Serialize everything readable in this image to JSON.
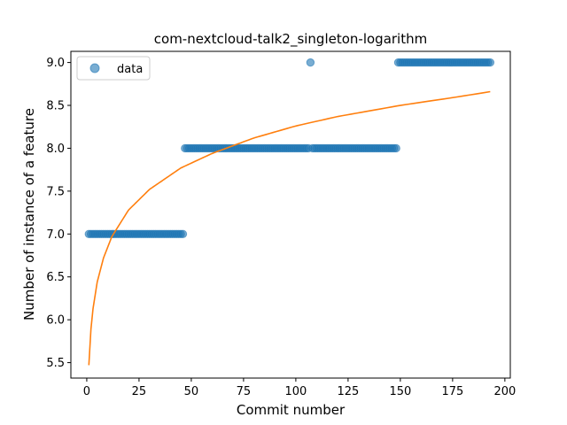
{
  "chart_data": {
    "type": "scatter",
    "title": "com-nextcloud-talk2_singleton-logarithm",
    "xlabel": "Commit number",
    "ylabel": "Number of instance of a feature",
    "xlim": [
      -7.6,
      202.6
    ],
    "ylim": [
      5.32,
      9.13
    ],
    "xticks": [
      0,
      25,
      50,
      75,
      100,
      125,
      150,
      175,
      200
    ],
    "yticks": [
      5.5,
      6.0,
      6.5,
      7.0,
      7.5,
      8.0,
      8.5,
      9.0
    ],
    "ytick_labels": [
      "5.5",
      "6.0",
      "6.5",
      "7.0",
      "7.5",
      "8.0",
      "8.5",
      "9.0"
    ],
    "grid": false,
    "legend": {
      "position": "top-left",
      "entries": [
        "data"
      ]
    },
    "colors": {
      "data": "#1f77b4",
      "fit": "#ff7f0e"
    },
    "series": [
      {
        "name": "data",
        "kind": "scatter",
        "segments": [
          {
            "x_from": 1,
            "x_to": 46,
            "y": 7
          },
          {
            "x_from": 47,
            "x_to": 106,
            "y": 8
          },
          {
            "x_from": 107,
            "x_to": 107,
            "y": 9
          },
          {
            "x_from": 108,
            "x_to": 148,
            "y": 8
          },
          {
            "x_from": 149,
            "x_to": 193,
            "y": 9
          }
        ]
      },
      {
        "kind": "line",
        "x": [
          1,
          2,
          3,
          5,
          8,
          12,
          20,
          30,
          45,
          60,
          80,
          100,
          120,
          150,
          175,
          193
        ],
        "y": [
          5.47,
          5.89,
          6.13,
          6.44,
          6.72,
          6.97,
          7.28,
          7.52,
          7.77,
          7.94,
          8.12,
          8.26,
          8.37,
          8.5,
          8.59,
          8.66
        ]
      }
    ]
  }
}
